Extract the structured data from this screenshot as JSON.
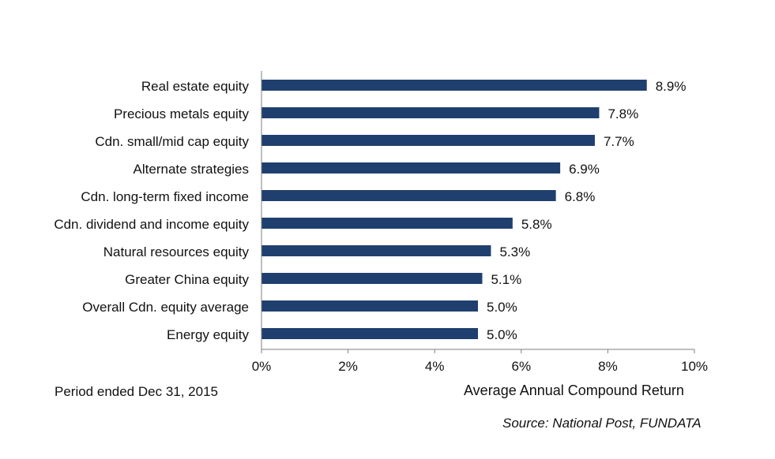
{
  "chart_data": {
    "type": "bar",
    "orientation": "horizontal",
    "categories": [
      "Real estate equity",
      "Precious metals equity",
      "Cdn. small/mid cap equity",
      "Alternate strategies",
      "Cdn. long-term fixed income",
      "Cdn. dividend and income equity",
      "Natural resources equity",
      "Greater China equity",
      "Overall Cdn. equity average",
      "Energy equity"
    ],
    "values": [
      8.9,
      7.8,
      7.7,
      6.9,
      6.8,
      5.8,
      5.3,
      5.1,
      5.0,
      5.0
    ],
    "value_labels": [
      "8.9%",
      "7.8%",
      "7.7%",
      "6.9%",
      "6.8%",
      "5.8%",
      "5.3%",
      "5.1%",
      "5.0%",
      "5.0%"
    ],
    "xlim": [
      0,
      10
    ],
    "xticks": [
      0,
      2,
      4,
      6,
      8,
      10
    ],
    "xtick_labels": [
      "0%",
      "2%",
      "4%",
      "6%",
      "8%",
      "10%"
    ],
    "xlabel": "Average Annual Compound Return",
    "grid": false,
    "bar_color": "#1f3f6e"
  },
  "notes": {
    "period": "Period ended Dec 31, 2015",
    "source": "Source: National Post, FUNDATA"
  }
}
